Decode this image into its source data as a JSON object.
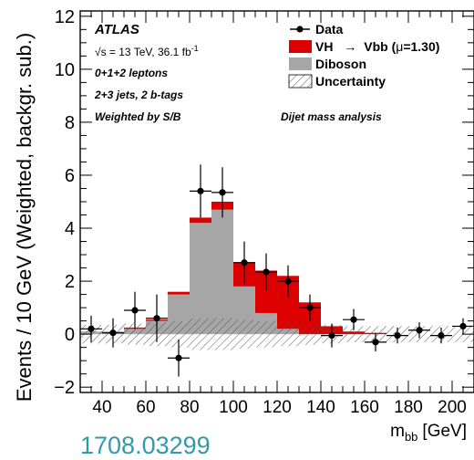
{
  "colors": {
    "signal": "#dd0000",
    "diboson": "#a6a6a6",
    "data": "#000000",
    "arxiv": "#3399aa"
  },
  "arxiv_id": "1708.03299",
  "chart_data": {
    "type": "bar",
    "stacked": true,
    "x_unit_label_main": "m",
    "x_unit_label_sub": "bb",
    "x_unit_label_tail": "[GeV]",
    "ylabel": "Events / 10 GeV (Weighted, backgr. sub.)",
    "xlim": [
      30,
      210
    ],
    "ylim": [
      -2.2,
      12.2
    ],
    "x_ticks": [
      40,
      60,
      80,
      100,
      120,
      140,
      160,
      180,
      200
    ],
    "y_ticks": [
      -2,
      0,
      2,
      4,
      6,
      8,
      10,
      12
    ],
    "grid": false,
    "legend_position": "top-right",
    "annotations": {
      "experiment": "ATLAS",
      "energy_prefix": "√s = 13 TeV, 36.1 fb",
      "energy_sup": "-1",
      "line1": "0+1+2 leptons",
      "line2": "2+3 jets, 2 b-tags",
      "line3": "Weighted by S/B",
      "analysis": "Dijet mass analysis"
    },
    "legend": {
      "data": "Data",
      "signal_prefix": "VH",
      "signal_arrow": "→",
      "signal_suffix": "Vbb (",
      "signal_mu": "μ",
      "signal_tail": "=1.30)",
      "diboson": "Diboson",
      "uncertainty": "Uncertainty"
    },
    "bin_edges": [
      30,
      40,
      50,
      60,
      70,
      80,
      90,
      100,
      110,
      120,
      130,
      140,
      150,
      160,
      170,
      180,
      190,
      200,
      210
    ],
    "series": [
      {
        "name": "Diboson",
        "values": [
          0.1,
          0.1,
          0.2,
          0.5,
          1.5,
          4.2,
          4.7,
          1.8,
          0.8,
          0.2,
          0.0,
          0.0,
          0.0,
          0.0,
          0.0,
          0.0,
          0.0,
          0.0
        ]
      },
      {
        "name": "VH → Vbb (μ=1.30)",
        "values": [
          0.0,
          0.0,
          0.05,
          0.05,
          0.1,
          0.2,
          0.3,
          0.9,
          1.6,
          2.0,
          1.2,
          0.3,
          0.1,
          0.05,
          0.0,
          0.0,
          0.0,
          0.0
        ]
      }
    ],
    "uncertainty_halfwidth": [
      0.35,
      0.35,
      0.4,
      0.45,
      0.5,
      0.6,
      0.6,
      0.55,
      0.5,
      0.45,
      0.4,
      0.35,
      0.3,
      0.3,
      0.3,
      0.3,
      0.3,
      0.3
    ],
    "data_points": {
      "x": [
        35,
        45,
        55,
        65,
        75,
        85,
        95,
        105,
        115,
        125,
        135,
        145,
        155,
        165,
        175,
        185,
        195,
        205
      ],
      "y": [
        0.2,
        0.05,
        0.9,
        0.6,
        -0.9,
        5.4,
        5.35,
        2.7,
        2.35,
        2.0,
        1.0,
        -0.05,
        0.55,
        -0.3,
        -0.05,
        0.15,
        -0.05,
        0.3
      ],
      "yerr": [
        0.5,
        0.55,
        0.7,
        0.9,
        0.7,
        1.0,
        0.95,
        0.8,
        0.7,
        0.6,
        0.5,
        0.45,
        0.4,
        0.35,
        0.3,
        0.3,
        0.3,
        0.3
      ]
    }
  }
}
